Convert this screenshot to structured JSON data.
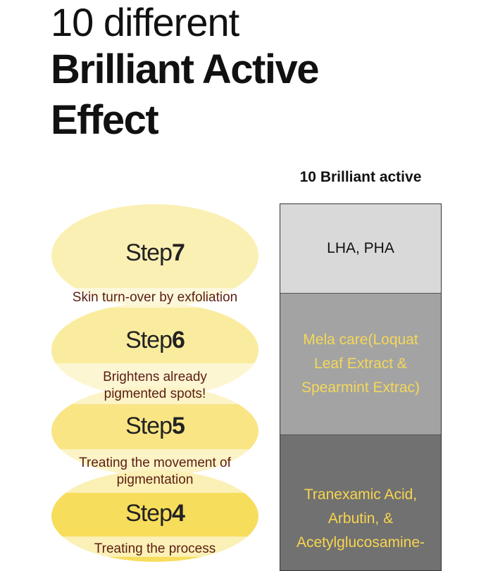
{
  "heading": {
    "line1": "10 different",
    "line2": "Brilliant Active",
    "line3": "Effect"
  },
  "table": {
    "header": "10 Brilliant active",
    "cells": [
      {
        "text": "LHA, PHA",
        "color": "#111111"
      },
      {
        "text": "Mela care(Loquat Leaf Extract & Spearmint Extrac)",
        "color": "#f4d85a"
      },
      {
        "text": "Tranexamic Acid, Arbutin, & Acetylglucosamine-",
        "color": "#f8d54f"
      }
    ]
  },
  "steps": [
    {
      "word": "Step",
      "number": "7",
      "description": "Skin turn-over by exfoliation"
    },
    {
      "word": "Step",
      "number": "6",
      "description": "Brightens already pigmented spots!"
    },
    {
      "word": "Step",
      "number": "5",
      "description": "Treating the movement of pigmentation"
    },
    {
      "word": "Step",
      "number": "4",
      "description": "Treating the process"
    }
  ]
}
